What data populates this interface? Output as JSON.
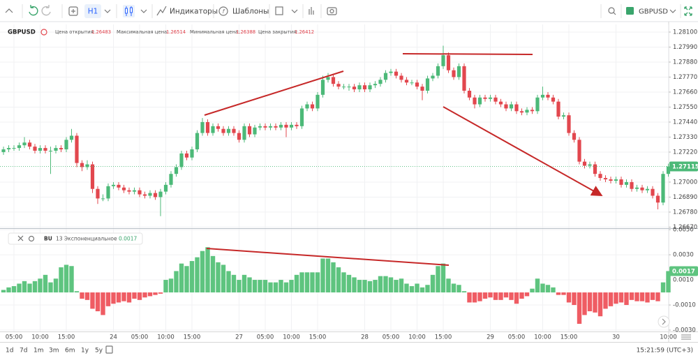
{
  "toolbar": {
    "timeframe": "H1",
    "indicators": "Индикаторы",
    "templates": "Шаблоны",
    "symbol": "GBPUSD"
  },
  "chart_data": [
    {
      "type": "candlestick",
      "title": "GBPUSD",
      "info": [
        {
          "label": "Цена открытия:",
          "value": "1.26483"
        },
        {
          "label": "Максимальная цена:",
          "value": "1.26514"
        },
        {
          "label": "Минимальная цена:",
          "value": "1.26388"
        },
        {
          "label": "Цена закрытия:",
          "value": "1.26412"
        }
      ],
      "up_color": "#4cb978",
      "down_color": "#e2474e",
      "grid": true,
      "ylim": [
        1.26662,
        1.28156
      ],
      "yticks": [
        {
          "value": 1.281,
          "label": "1.28100"
        },
        {
          "value": 1.2799,
          "label": "1.27990"
        },
        {
          "value": 1.2788,
          "label": "1.27880"
        },
        {
          "value": 1.2777,
          "label": "1.27770"
        },
        {
          "value": 1.2766,
          "label": "1.27660"
        },
        {
          "value": 1.2755,
          "label": "1.27550"
        },
        {
          "value": 1.2744,
          "label": "1.27440"
        },
        {
          "value": 1.2733,
          "label": "1.27330"
        },
        {
          "value": 1.2722,
          "label": "1.27220"
        },
        {
          "value": 1.27,
          "label": "1.27000"
        },
        {
          "value": 1.2689,
          "label": "1.26890"
        },
        {
          "value": 1.2678,
          "label": "1.26780"
        },
        {
          "value": 1.2667,
          "label": "1.26670"
        }
      ],
      "candles": [
        [
          1.2722,
          1.2726,
          1.272,
          1.2724
        ],
        [
          1.2724,
          1.2727,
          1.2722,
          1.2725
        ],
        [
          1.2725,
          1.2727,
          1.2723,
          1.2725
        ],
        [
          1.2725,
          1.2729,
          1.2723,
          1.2727
        ],
        [
          1.2727,
          1.2733,
          1.2725,
          1.2729
        ],
        [
          1.2729,
          1.2731,
          1.2724,
          1.2726
        ],
        [
          1.2726,
          1.2728,
          1.2721,
          1.2723
        ],
        [
          1.2723,
          1.2727,
          1.2721,
          1.2725
        ],
        [
          1.2725,
          1.2727,
          1.2721,
          1.2723
        ],
        [
          1.2723,
          1.2726,
          1.2706,
          1.2723
        ],
        [
          1.2723,
          1.2727,
          1.2721,
          1.2725
        ],
        [
          1.2725,
          1.2727,
          1.2722,
          1.2724
        ],
        [
          1.2724,
          1.2733,
          1.2722,
          1.2731
        ],
        [
          1.2731,
          1.2739,
          1.2729,
          1.2734
        ],
        [
          1.2734,
          1.2736,
          1.2711,
          1.2714
        ],
        [
          1.2714,
          1.2716,
          1.2708,
          1.2711
        ],
        [
          1.2711,
          1.2716,
          1.2709,
          1.2713
        ],
        [
          1.2713,
          1.2715,
          1.2692,
          1.2695
        ],
        [
          1.2695,
          1.2697,
          1.2684,
          1.2688
        ],
        [
          1.2688,
          1.2691,
          1.2686,
          1.2688
        ],
        [
          1.2688,
          1.2699,
          1.2686,
          1.2697
        ],
        [
          1.2697,
          1.27,
          1.2695,
          1.2698
        ],
        [
          1.2698,
          1.27,
          1.2694,
          1.2696
        ],
        [
          1.2696,
          1.2698,
          1.2692,
          1.2694
        ],
        [
          1.2694,
          1.2696,
          1.2691,
          1.2693
        ],
        [
          1.2693,
          1.2696,
          1.2691,
          1.2694
        ],
        [
          1.2694,
          1.2696,
          1.2689,
          1.2691
        ],
        [
          1.2691,
          1.2693,
          1.2688,
          1.269
        ],
        [
          1.269,
          1.2694,
          1.2688,
          1.2692
        ],
        [
          1.2692,
          1.2694,
          1.2687,
          1.2689
        ],
        [
          1.2689,
          1.2695,
          1.2675,
          1.2693
        ],
        [
          1.2693,
          1.27,
          1.2691,
          1.2698
        ],
        [
          1.2698,
          1.2708,
          1.2696,
          1.2706
        ],
        [
          1.2706,
          1.2713,
          1.2704,
          1.2711
        ],
        [
          1.2711,
          1.2723,
          1.2709,
          1.2721
        ],
        [
          1.2721,
          1.2723,
          1.2716,
          1.2718
        ],
        [
          1.2718,
          1.2726,
          1.2716,
          1.2724
        ],
        [
          1.2724,
          1.2738,
          1.2722,
          1.2736
        ],
        [
          1.2736,
          1.2747,
          1.2734,
          1.2744
        ],
        [
          1.2744,
          1.2746,
          1.2734,
          1.2736
        ],
        [
          1.2736,
          1.2743,
          1.2734,
          1.2741
        ],
        [
          1.2741,
          1.2743,
          1.2737,
          1.2739
        ],
        [
          1.2739,
          1.2741,
          1.2734,
          1.2736
        ],
        [
          1.2736,
          1.2741,
          1.2734,
          1.2739
        ],
        [
          1.2739,
          1.2741,
          1.2734,
          1.2736
        ],
        [
          1.2736,
          1.2738,
          1.2729,
          1.2731
        ],
        [
          1.2731,
          1.2743,
          1.2729,
          1.2741
        ],
        [
          1.2741,
          1.2743,
          1.2733,
          1.2735
        ],
        [
          1.2735,
          1.2742,
          1.2733,
          1.274
        ],
        [
          1.274,
          1.2743,
          1.2738,
          1.2741
        ],
        [
          1.2741,
          1.2743,
          1.2738,
          1.274
        ],
        [
          1.274,
          1.2743,
          1.2738,
          1.2741
        ],
        [
          1.2741,
          1.2743,
          1.2738,
          1.274
        ],
        [
          1.274,
          1.2744,
          1.2738,
          1.2742
        ],
        [
          1.2742,
          1.2744,
          1.2733,
          1.274
        ],
        [
          1.274,
          1.2744,
          1.2738,
          1.2742
        ],
        [
          1.2742,
          1.2744,
          1.2739,
          1.2741
        ],
        [
          1.2741,
          1.2756,
          1.2739,
          1.2754
        ],
        [
          1.2754,
          1.2759,
          1.2752,
          1.2757
        ],
        [
          1.2757,
          1.2759,
          1.2752,
          1.2754
        ],
        [
          1.2754,
          1.2766,
          1.2752,
          1.2764
        ],
        [
          1.2764,
          1.2778,
          1.2762,
          1.2775
        ],
        [
          1.2775,
          1.278,
          1.2773,
          1.2777
        ],
        [
          1.2777,
          1.2779,
          1.277,
          1.2772
        ],
        [
          1.2772,
          1.2774,
          1.2768,
          1.277
        ],
        [
          1.277,
          1.2772,
          1.2768,
          1.277
        ],
        [
          1.277,
          1.2772,
          1.2767,
          1.277
        ],
        [
          1.277,
          1.2772,
          1.2766,
          1.2768
        ],
        [
          1.2768,
          1.2773,
          1.2766,
          1.2771
        ],
        [
          1.2771,
          1.2773,
          1.2766,
          1.2768
        ],
        [
          1.2768,
          1.2773,
          1.2766,
          1.2771
        ],
        [
          1.2771,
          1.2774,
          1.2769,
          1.2772
        ],
        [
          1.2772,
          1.2777,
          1.277,
          1.2775
        ],
        [
          1.2775,
          1.2782,
          1.2773,
          1.278
        ],
        [
          1.278,
          1.2783,
          1.2778,
          1.2781
        ],
        [
          1.2781,
          1.2783,
          1.2776,
          1.2778
        ],
        [
          1.2778,
          1.278,
          1.2773,
          1.2775
        ],
        [
          1.2775,
          1.2777,
          1.2771,
          1.2773
        ],
        [
          1.2773,
          1.2775,
          1.2771,
          1.2773
        ],
        [
          1.2773,
          1.2775,
          1.2768,
          1.277
        ],
        [
          1.277,
          1.2772,
          1.276,
          1.2767
        ],
        [
          1.2767,
          1.2778,
          1.2765,
          1.2776
        ],
        [
          1.2776,
          1.278,
          1.2774,
          1.2778
        ],
        [
          1.2778,
          1.2787,
          1.2776,
          1.2785
        ],
        [
          1.2785,
          1.28,
          1.2783,
          1.2793
        ],
        [
          1.2793,
          1.2795,
          1.278,
          1.2782
        ],
        [
          1.2782,
          1.2784,
          1.2775,
          1.2777
        ],
        [
          1.2777,
          1.2787,
          1.2775,
          1.2785
        ],
        [
          1.2785,
          1.2787,
          1.2765,
          1.2767
        ],
        [
          1.2767,
          1.2769,
          1.276,
          1.2762
        ],
        [
          1.2762,
          1.2764,
          1.2754,
          1.2757
        ],
        [
          1.2757,
          1.2764,
          1.2755,
          1.2762
        ],
        [
          1.2762,
          1.2764,
          1.2759,
          1.2761
        ],
        [
          1.2761,
          1.2764,
          1.2759,
          1.2762
        ],
        [
          1.2762,
          1.2764,
          1.2757,
          1.2759
        ],
        [
          1.2759,
          1.2761,
          1.2755,
          1.2757
        ],
        [
          1.2757,
          1.2759,
          1.2752,
          1.2754
        ],
        [
          1.2754,
          1.2759,
          1.2752,
          1.2757
        ],
        [
          1.2757,
          1.2759,
          1.275,
          1.2752
        ],
        [
          1.2752,
          1.2754,
          1.2749,
          1.2751
        ],
        [
          1.2751,
          1.2755,
          1.2749,
          1.2753
        ],
        [
          1.2753,
          1.2755,
          1.275,
          1.2752
        ],
        [
          1.2752,
          1.2764,
          1.275,
          1.2762
        ],
        [
          1.2762,
          1.277,
          1.276,
          1.2764
        ],
        [
          1.2764,
          1.2766,
          1.276,
          1.2762
        ],
        [
          1.2762,
          1.2764,
          1.2757,
          1.2759
        ],
        [
          1.2759,
          1.2761,
          1.2746,
          1.2748
        ],
        [
          1.2748,
          1.2751,
          1.2746,
          1.2749
        ],
        [
          1.2749,
          1.2751,
          1.2734,
          1.2736
        ],
        [
          1.2736,
          1.2738,
          1.2729,
          1.2731
        ],
        [
          1.2731,
          1.2733,
          1.2713,
          1.2715
        ],
        [
          1.2715,
          1.2717,
          1.271,
          1.2712
        ],
        [
          1.2712,
          1.2715,
          1.271,
          1.2713
        ],
        [
          1.2713,
          1.2715,
          1.2704,
          1.2706
        ],
        [
          1.2706,
          1.2708,
          1.2701,
          1.2703
        ],
        [
          1.2703,
          1.2705,
          1.27,
          1.2702
        ],
        [
          1.2702,
          1.2704,
          1.2699,
          1.2701
        ],
        [
          1.2701,
          1.2704,
          1.2699,
          1.2702
        ],
        [
          1.2702,
          1.2704,
          1.2696,
          1.2698
        ],
        [
          1.2698,
          1.2702,
          1.2696,
          1.27
        ],
        [
          1.27,
          1.2702,
          1.2693,
          1.2695
        ],
        [
          1.2695,
          1.2698,
          1.2693,
          1.2696
        ],
        [
          1.2696,
          1.2698,
          1.2692,
          1.2694
        ],
        [
          1.2694,
          1.2697,
          1.2692,
          1.2695
        ],
        [
          1.2695,
          1.2697,
          1.2688,
          1.269
        ],
        [
          1.269,
          1.2692,
          1.268,
          1.2685
        ],
        [
          1.2685,
          1.2708,
          1.2683,
          1.2706
        ],
        [
          1.2706,
          1.27135,
          1.2704,
          1.27115
        ]
      ]
    },
    {
      "type": "histogram",
      "name": "BU",
      "description": "13 Экспоненциальное",
      "positive_color": "#5ec47f",
      "negative_color": "#ef5c63",
      "grid": true,
      "ylim": [
        -0.00311,
        0.00506
      ],
      "yticks": [
        {
          "value": 0.005,
          "label": "0.0050"
        },
        {
          "value": 0.003,
          "label": "0.0030"
        },
        {
          "value": 0.001,
          "label": "0.0010"
        },
        {
          "value": -0.001,
          "label": "-0.0010"
        },
        {
          "value": -0.003,
          "label": "-0.0030"
        }
      ],
      "categories": [
        null,
        null,
        "05:00",
        null,
        null,
        null,
        null,
        "10:00",
        null,
        null,
        null,
        null,
        "15:00",
        null,
        null,
        null,
        null,
        null,
        null,
        null,
        null,
        "24",
        null,
        null,
        null,
        null,
        "05:00",
        null,
        null,
        null,
        null,
        "10:00",
        null,
        null,
        null,
        null,
        "15:00",
        null,
        null,
        null,
        null,
        null,
        null,
        null,
        null,
        "27",
        null,
        null,
        null,
        null,
        "05:00",
        null,
        null,
        null,
        null,
        "10:00",
        null,
        null,
        null,
        null,
        "15:00",
        null,
        null,
        null,
        null,
        null,
        null,
        null,
        null,
        "28",
        null,
        null,
        null,
        null,
        "05:00",
        null,
        null,
        null,
        null,
        "10:00",
        null,
        null,
        null,
        null,
        "15:00",
        null,
        null,
        null,
        null,
        null,
        null,
        null,
        null,
        "29",
        null,
        null,
        null,
        null,
        "05:00",
        null,
        null,
        null,
        null,
        "10:00",
        null,
        null,
        null,
        null,
        "15:00",
        null,
        null,
        null,
        null,
        null,
        null,
        null,
        null,
        "30",
        null,
        null,
        null,
        null,
        null,
        null,
        null,
        null,
        null,
        "10:00"
      ],
      "values": [
        0.0002,
        0.0004,
        0.0005,
        0.0007,
        0.0009,
        0.0007,
        0.0009,
        0.0011,
        0.0014,
        0.0008,
        0.0011,
        0.002,
        0.0022,
        0.0021,
        0.0001,
        -0.0005,
        -0.0006,
        -0.0013,
        -0.0015,
        -0.0018,
        -0.0011,
        -0.0009,
        -0.0008,
        -0.0007,
        -0.0008,
        -0.0005,
        -0.0006,
        -0.0004,
        -0.0003,
        -0.0002,
        -0.0001,
        0.001,
        0.0011,
        0.0017,
        0.0023,
        0.0021,
        0.0025,
        0.0028,
        0.0033,
        0.0036,
        0.0029,
        0.0024,
        0.0022,
        0.0017,
        0.0014,
        0.001,
        0.0014,
        0.0012,
        0.001,
        0.001,
        0.001,
        0.0008,
        0.0008,
        0.001,
        0.0008,
        0.001,
        0.0014,
        0.0016,
        0.0016,
        0.0016,
        0.0016,
        0.0027,
        0.0027,
        0.0024,
        0.002,
        0.0016,
        0.0014,
        0.0012,
        0.001,
        0.001,
        0.0009,
        0.001,
        0.0013,
        0.0013,
        0.0012,
        0.001,
        0.0011,
        0.0007,
        0.0005,
        0.0007,
        0.0004,
        0.0006,
        0.0014,
        0.0021,
        0.0023,
        0.0011,
        0.0007,
        0.0006,
        0.0001,
        -0.0008,
        -0.0008,
        -0.0007,
        -0.0005,
        -0.0004,
        -0.0006,
        -0.0006,
        -0.0004,
        -0.0006,
        -0.0009,
        -0.0005,
        -0.0003,
        0.0003,
        0.0011,
        0.0007,
        0.0006,
        0.0004,
        -0.0002,
        -0.0002,
        -0.0008,
        -0.001,
        -0.0025,
        -0.0018,
        -0.0015,
        -0.0016,
        -0.0019,
        -0.0013,
        -0.0011,
        -0.0009,
        -0.0008,
        -0.001,
        -0.0006,
        -0.0007,
        -0.0007,
        -0.0008,
        -0.0006,
        -0.0007,
        0.0008,
        0.0017
      ]
    }
  ],
  "footer": {
    "ranges": [
      "1d",
      "7d",
      "1m",
      "3m",
      "6m",
      "1y",
      "5y"
    ],
    "clock": "15:21:59 (UTC+3)"
  }
}
